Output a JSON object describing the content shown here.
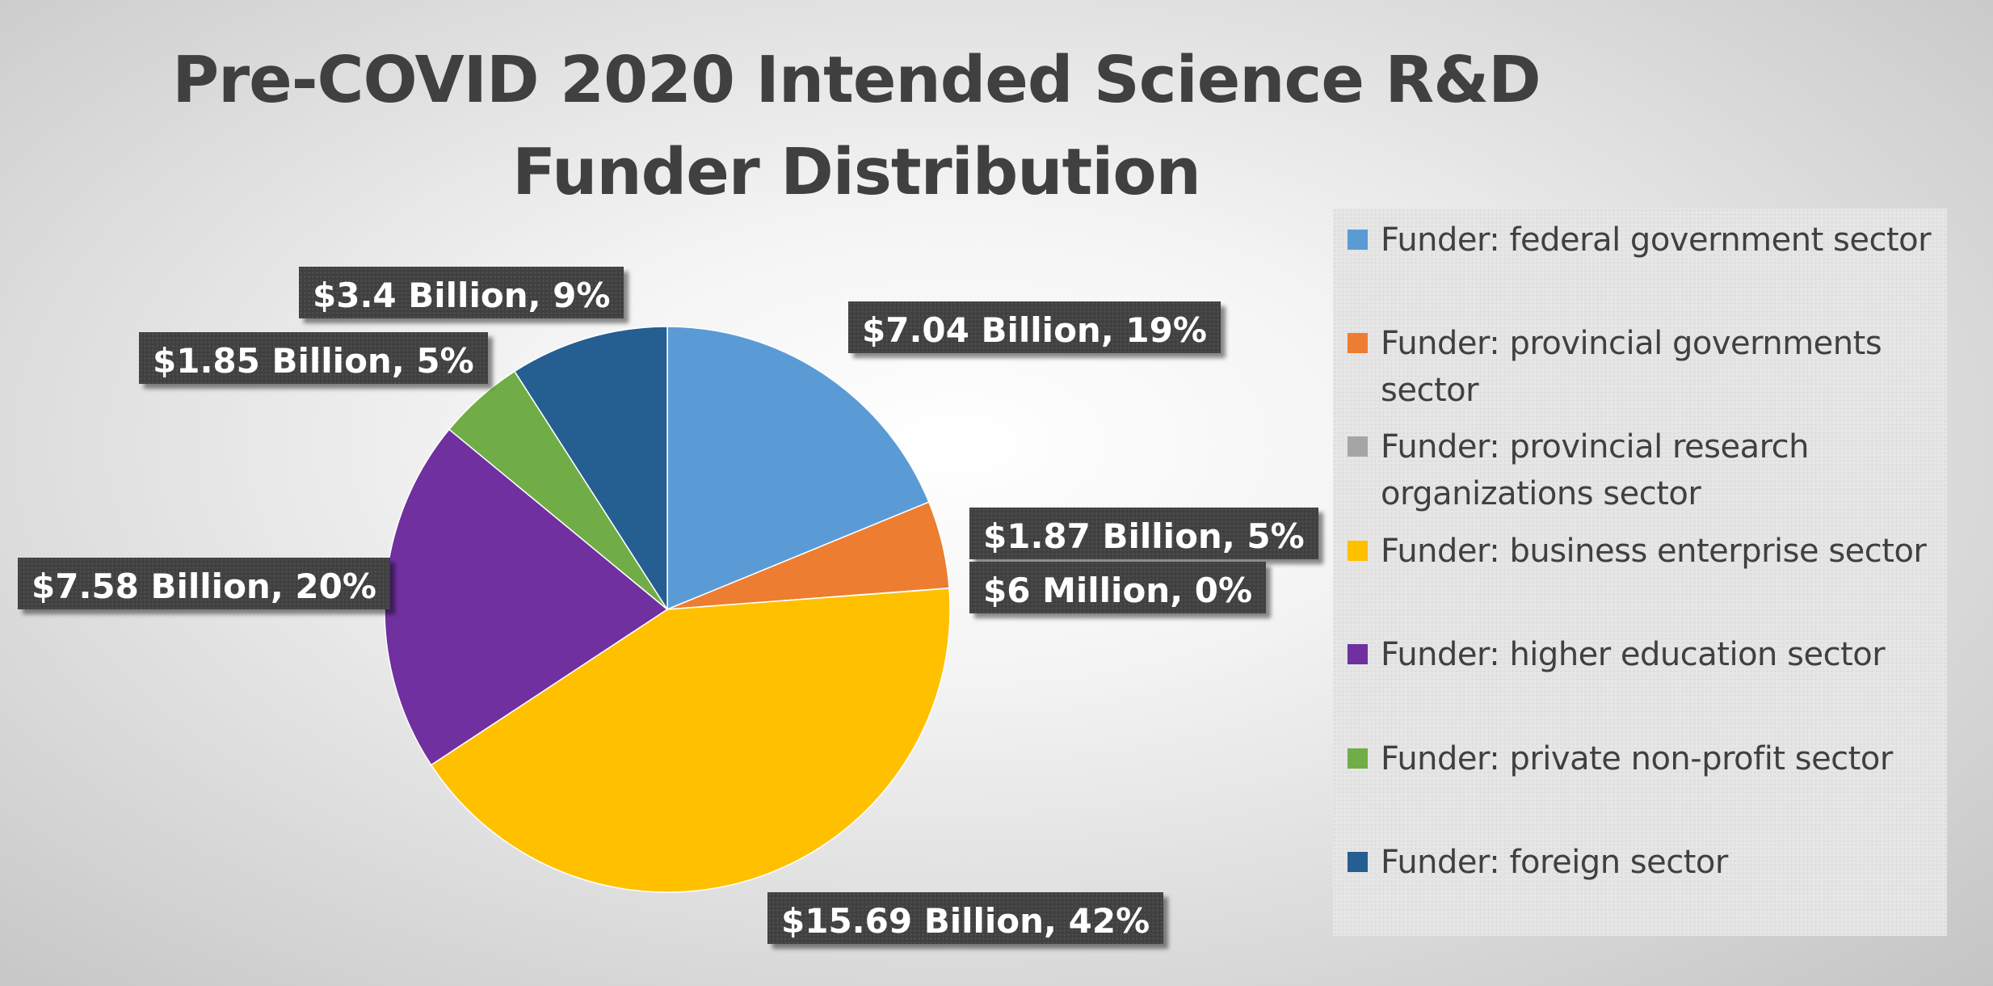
{
  "chart_data": {
    "type": "pie",
    "title": "Pre-COVID 2020 Intended Science R&D Funder Distribution",
    "legend_position": "right",
    "series": [
      {
        "categories": [
          "Funder: federal government sector",
          "Funder: provincial governments sector",
          "Funder: provincial research organizations sector",
          "Funder: business enterprise sector",
          "Funder: higher education sector",
          "Funder: private non-profit sector",
          "Funder: foreign sector"
        ],
        "values": [
          7.04,
          1.87,
          0.006,
          15.69,
          7.58,
          1.85,
          3.4
        ],
        "data_labels": [
          "$7.04 Billion, 19%",
          "$1.87 Billion, 5%",
          "$6 Million, 0%",
          "$15.69 Billion, 42%",
          "$7.58 Billion, 20%",
          "$1.85 Billion, 5%",
          "$3.4 Billion, 9%"
        ],
        "colors": [
          "#5b9bd5",
          "#ed7d31",
          "#a5a5a5",
          "#ffc000",
          "#7030a0",
          "#70ad47",
          "#255e91"
        ]
      }
    ]
  }
}
